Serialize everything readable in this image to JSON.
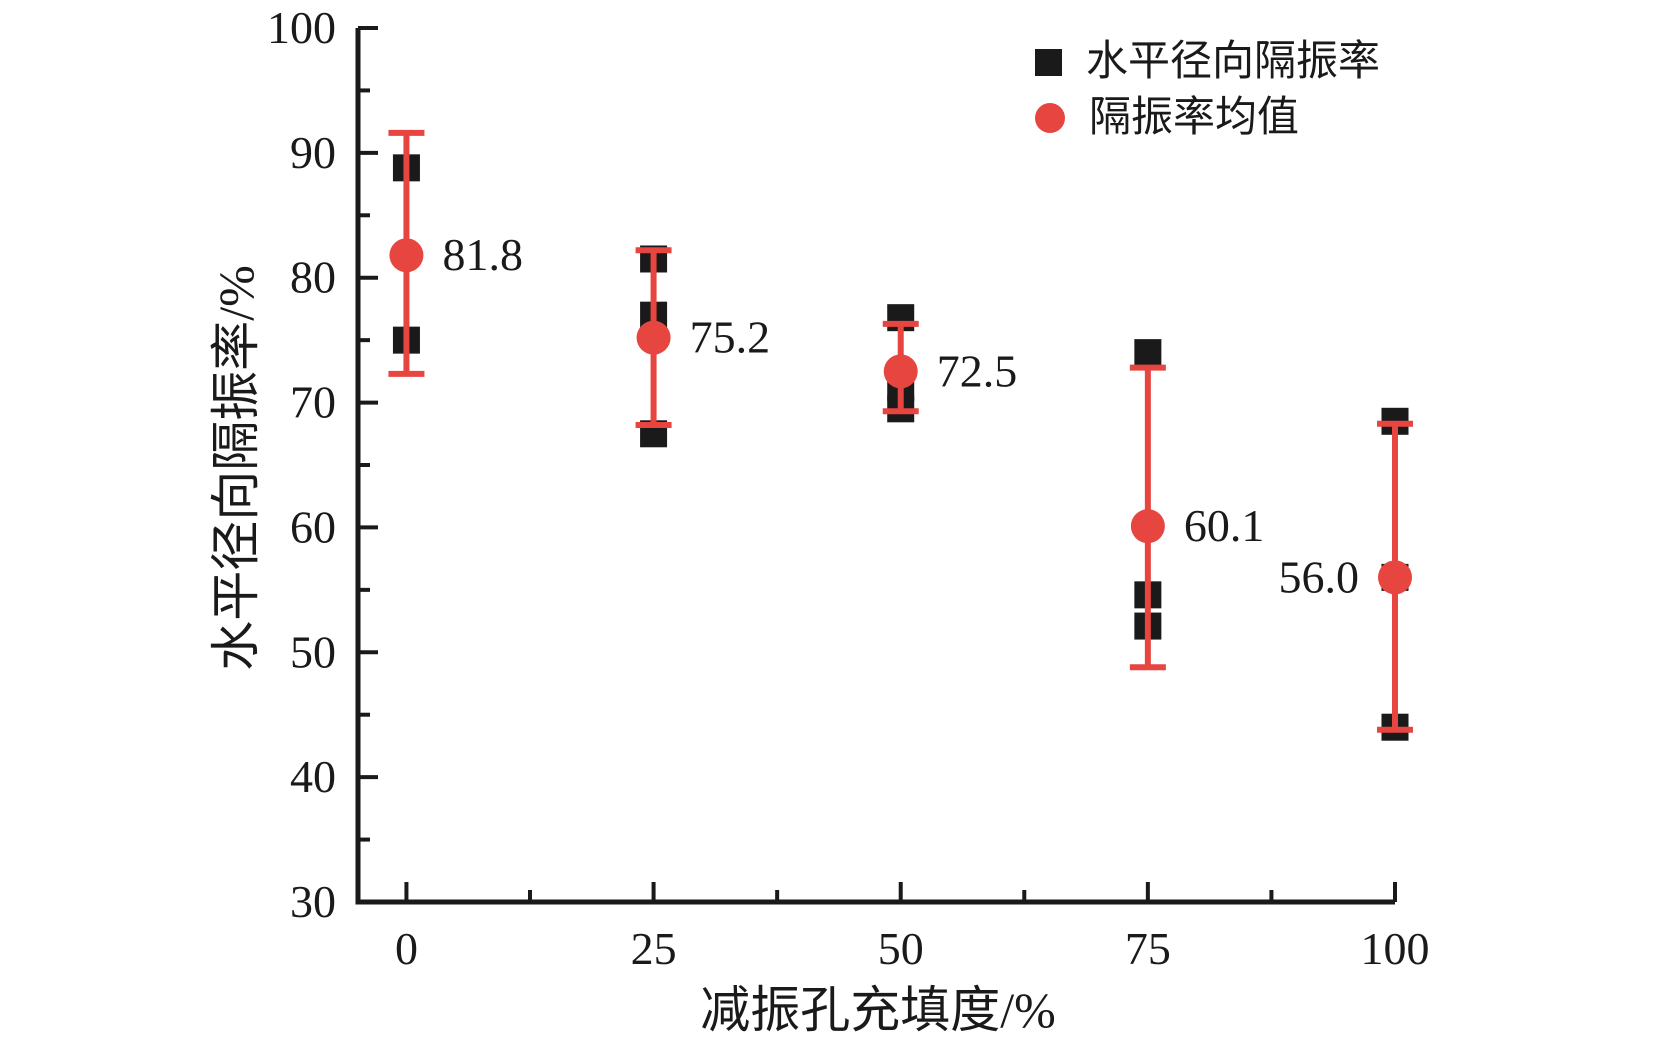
{
  "chart_data": {
    "type": "scatter",
    "title": "",
    "xlabel": "减振孔充填度/%",
    "ylabel": "水平径向隔振率/%",
    "xlim": [
      -4.9,
      100
    ],
    "ylim": [
      30,
      100
    ],
    "grid": false,
    "legend_position": "top-right-inside",
    "x_major_ticks": [
      0,
      25,
      50,
      75,
      100
    ],
    "x_minor_ticks": [
      12.5,
      37.5,
      62.5,
      87.5
    ],
    "x_tick_labels": [
      "0",
      "25",
      "50",
      "75",
      "100"
    ],
    "y_major_ticks": [
      30,
      40,
      50,
      60,
      70,
      80,
      90,
      100
    ],
    "y_minor_ticks": [
      35,
      45,
      55,
      65,
      75,
      85,
      95
    ],
    "y_tick_labels": [
      "30",
      "40",
      "50",
      "60",
      "70",
      "80",
      "90",
      "100"
    ],
    "legend": [
      {
        "label": "水平径向隔振率",
        "marker": "square",
        "color": "#1a1a1a"
      },
      {
        "label": "隔振率均值",
        "marker": "circle",
        "color": "#e64540"
      }
    ],
    "groups": [
      {
        "x": 0,
        "squares": [
          88.8,
          75.0
        ],
        "mean": 81.8,
        "err_lo": 72.3,
        "err_hi": 91.6,
        "mean_label": "81.8",
        "label_side": "right"
      },
      {
        "x": 25,
        "squares": [
          81.5,
          77.0,
          67.5
        ],
        "mean": 75.2,
        "err_lo": 68.2,
        "err_hi": 82.2,
        "mean_label": "75.2",
        "label_side": "right"
      },
      {
        "x": 50,
        "squares": [
          76.8,
          71.2,
          69.5
        ],
        "mean": 72.5,
        "err_lo": 69.3,
        "err_hi": 76.3,
        "mean_label": "72.5",
        "label_side": "right"
      },
      {
        "x": 75,
        "squares": [
          74.0,
          54.6,
          52.1
        ],
        "mean": 60.1,
        "err_lo": 48.8,
        "err_hi": 72.8,
        "mean_label": "60.1",
        "label_side": "right"
      },
      {
        "x": 100,
        "squares": [
          68.5,
          56.0,
          44.0
        ],
        "mean": 56.0,
        "err_lo": 43.8,
        "err_hi": 68.3,
        "mean_label": "56.0",
        "label_side": "left"
      }
    ],
    "colors": {
      "square_marker": "#1a1a1a",
      "mean_marker": "#e64540",
      "error_bar": "#e64540",
      "axis": "#1a1a1a",
      "background": "#ffffff"
    }
  }
}
